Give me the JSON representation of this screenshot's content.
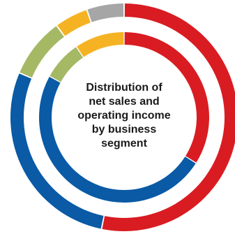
{
  "chart_data": {
    "type": "donut",
    "title_lines": [
      "Distribution of",
      "net sales and",
      "operating income",
      "by business",
      "segment"
    ],
    "rings": [
      {
        "ring": "outer",
        "series": [
          {
            "value": 50.0,
            "color": "#d91c22"
          },
          {
            "value": 26.5,
            "color": "#0a5aa5"
          },
          {
            "value": 8.0,
            "color": "#a5b864"
          },
          {
            "value": 4.5,
            "color": "#f5b324"
          },
          {
            "value": 5.0,
            "color": "#a6a6a6"
          }
        ]
      },
      {
        "ring": "inner",
        "series": [
          {
            "value": 34.0,
            "color": "#d91c22"
          },
          {
            "value": 49.0,
            "color": "#0a5aa5"
          },
          {
            "value": 7.5,
            "color": "#a5b864"
          },
          {
            "value": 9.5,
            "color": "#f5b324"
          }
        ]
      }
    ]
  }
}
